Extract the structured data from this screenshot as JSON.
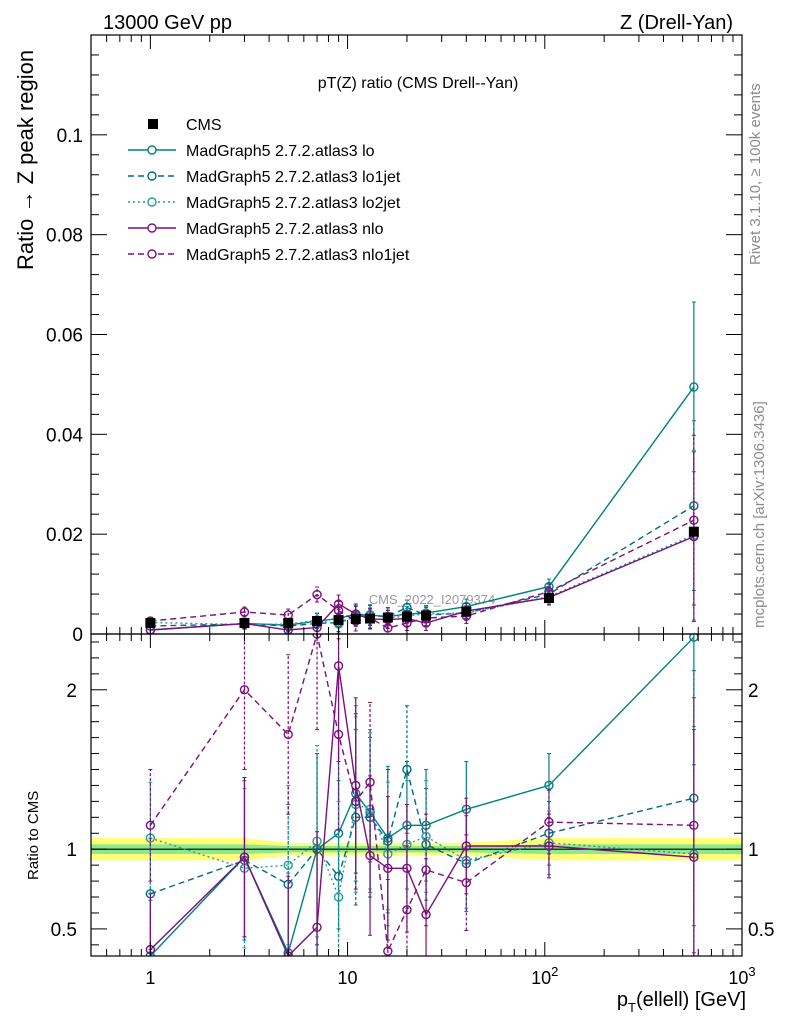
{
  "header": {
    "left": "13000 GeV pp",
    "right": "Z (Drell-Yan)"
  },
  "side": {
    "rivet": "Rivet 3.1.10, ≥ 100k events",
    "mcplots": "mcplots.cern.ch [arXiv:1306.3436]"
  },
  "chart_data": [
    {
      "type": "line",
      "title": "pT(Z) ratio (CMS Drell--Yan)",
      "xlabel": "p_T(ellell) [GeV]",
      "ylabel": "Ratio → Z peak region",
      "xscale": "log",
      "xlim": [
        0.5,
        1000
      ],
      "ylim": [
        0,
        0.12
      ],
      "yticks": [
        "0",
        "0.02",
        "0.04",
        "0.06",
        "0.08",
        "0.1"
      ],
      "xticks": [
        "1",
        "10",
        "10^2",
        "10^3"
      ],
      "watermark": "CMS_2022_I2079374",
      "legend_position": "top-left",
      "x": [
        1,
        3,
        5,
        7,
        9,
        11,
        13,
        16,
        20,
        25,
        40,
        105,
        570
      ],
      "series": [
        {
          "name": "CMS",
          "color": "#000000",
          "style": "marker",
          "values": [
            0.0022,
            0.0022,
            0.0022,
            0.0026,
            0.0028,
            0.003,
            0.0031,
            0.0033,
            0.0035,
            0.0037,
            0.0045,
            0.0072,
            0.0205
          ]
        },
        {
          "name": "MadGraph5 2.7.2.atlas3 lo",
          "color": "#008080",
          "style": "solid",
          "values": [
            0.0008,
            0.0021,
            0.0018,
            0.0026,
            0.0031,
            0.004,
            0.0038,
            0.0035,
            0.004,
            0.0042,
            0.0055,
            0.0095,
            0.0495
          ],
          "errors": [
            0.0008,
            0.001,
            0.0012,
            0.0015,
            0.0018,
            0.002,
            0.002,
            0.0018,
            0.0015,
            0.0015,
            0.0015,
            0.0015,
            0.017
          ]
        },
        {
          "name": "MadGraph5 2.7.2.atlas3 lo1jet",
          "color": "#006b80",
          "style": "dashed",
          "values": [
            0.0016,
            0.002,
            0.0016,
            0.0021,
            0.0023,
            0.0035,
            0.0037,
            0.0035,
            0.0053,
            0.0038,
            0.0042,
            0.008,
            0.0257
          ],
          "errors": [
            0.0008,
            0.001,
            0.0012,
            0.0015,
            0.0018,
            0.002,
            0.002,
            0.0018,
            0.0015,
            0.0015,
            0.0015,
            0.0015,
            0.017
          ]
        },
        {
          "name": "MadGraph5 2.7.2.atlas3 lo2jet",
          "color": "#2a9a9a",
          "style": "dotted",
          "values": [
            0.0023,
            0.0019,
            0.002,
            0.0027,
            0.002,
            0.0037,
            0.0039,
            0.0032,
            0.0036,
            0.004,
            0.0042,
            0.0075,
            0.0198
          ],
          "errors": [
            0.0008,
            0.001,
            0.0012,
            0.0015,
            0.0018,
            0.002,
            0.002,
            0.0018,
            0.0015,
            0.0015,
            0.0015,
            0.0015,
            0.017
          ]
        },
        {
          "name": "MadGraph5 2.7.2.atlas3 nlo",
          "color": "#7b0f7b",
          "style": "solid",
          "values": [
            0.0008,
            0.0021,
            0.0008,
            0.0013,
            0.006,
            0.004,
            0.003,
            0.0029,
            0.0031,
            0.0022,
            0.0046,
            0.0073,
            0.0195
          ],
          "errors": [
            0.0008,
            0.001,
            0.0012,
            0.0015,
            0.0018,
            0.002,
            0.002,
            0.0018,
            0.0015,
            0.0015,
            0.0015,
            0.0015,
            0.017
          ]
        },
        {
          "name": "MadGraph5 2.7.2.atlas3 nlo1jet",
          "color": "#7b0f7b",
          "style": "dashed",
          "values": [
            0.0026,
            0.0044,
            0.0038,
            0.0079,
            0.0047,
            0.0026,
            0.0032,
            0.0012,
            0.0022,
            0.0032,
            0.0036,
            0.0085,
            0.0228
          ],
          "errors": [
            0.0008,
            0.001,
            0.0012,
            0.0015,
            0.0018,
            0.002,
            0.002,
            0.0018,
            0.0015,
            0.0015,
            0.0015,
            0.0015,
            0.017
          ]
        }
      ]
    },
    {
      "type": "line",
      "ylabel": "Ratio to CMS",
      "xscale": "log",
      "xlim": [
        0.5,
        1000
      ],
      "ylim": [
        0.33,
        2.35
      ],
      "yticks": [
        "0.5",
        "1",
        "2"
      ],
      "x": [
        1,
        3,
        5,
        7,
        9,
        11,
        13,
        16,
        20,
        25,
        40,
        105,
        570
      ],
      "band_outer": [
        0.07,
        0.07,
        0.04,
        0.04,
        0.04,
        0.04,
        0.04,
        0.04,
        0.04,
        0.04,
        0.04,
        0.07,
        0.07
      ],
      "band_inner": [
        0.03,
        0.03,
        0.02,
        0.02,
        0.02,
        0.02,
        0.02,
        0.02,
        0.02,
        0.02,
        0.02,
        0.03,
        0.03
      ],
      "series": [
        {
          "name": "MadGraph5 2.7.2.atlas3 lo",
          "color": "#008080",
          "style": "solid",
          "values": [
            0.33,
            0.95,
            0.35,
            1.0,
            1.1,
            1.35,
            1.23,
            1.07,
            1.15,
            1.15,
            1.25,
            1.4,
            2.33
          ],
          "errors": [
            0.35,
            0.5,
            0.5,
            0.6,
            0.6,
            0.55,
            0.5,
            0.45,
            0.4,
            0.35,
            0.3,
            0.2,
            0.8
          ]
        },
        {
          "name": "MadGraph5 2.7.2.atlas3 lo1jet",
          "color": "#006b80",
          "style": "dashed",
          "values": [
            0.72,
            0.93,
            0.78,
            1.0,
            0.83,
            1.2,
            1.2,
            1.05,
            1.5,
            1.03,
            0.91,
            1.1,
            1.32
          ],
          "errors": [
            0.35,
            0.5,
            0.5,
            0.6,
            0.6,
            0.55,
            0.5,
            0.45,
            0.4,
            0.35,
            0.3,
            0.2,
            0.8
          ]
        },
        {
          "name": "MadGraph5 2.7.2.atlas3 lo2jet",
          "color": "#2a9a9a",
          "style": "dotted",
          "values": [
            1.07,
            0.88,
            0.9,
            1.05,
            0.7,
            1.28,
            1.25,
            0.97,
            1.03,
            1.08,
            0.93,
            1.04,
            0.97
          ],
          "errors": [
            0.35,
            0.5,
            0.5,
            0.6,
            0.6,
            0.55,
            0.5,
            0.45,
            0.4,
            0.35,
            0.3,
            0.2,
            0.8
          ]
        },
        {
          "name": "MadGraph5 2.7.2.atlas3 nlo",
          "color": "#7b0f7b",
          "style": "solid",
          "values": [
            0.37,
            0.95,
            0.33,
            0.51,
            2.15,
            1.4,
            0.96,
            0.88,
            0.88,
            0.59,
            1.02,
            1.02,
            0.95
          ],
          "errors": [
            0.35,
            0.5,
            0.5,
            0.6,
            0.6,
            0.55,
            0.5,
            0.45,
            0.4,
            0.35,
            0.3,
            0.2,
            0.8
          ]
        },
        {
          "name": "MadGraph5 2.7.2.atlas3 nlo1jet",
          "color": "#7b0f7b",
          "style": "dashed",
          "values": [
            1.15,
            2.0,
            1.72,
            2.35,
            1.72,
            1.3,
            1.42,
            0.36,
            0.62,
            0.87,
            0.79,
            1.17,
            1.15
          ],
          "errors": [
            0.35,
            0.5,
            0.5,
            0.6,
            0.6,
            0.55,
            0.5,
            0.45,
            0.4,
            0.35,
            0.3,
            0.2,
            0.8
          ]
        }
      ]
    }
  ]
}
